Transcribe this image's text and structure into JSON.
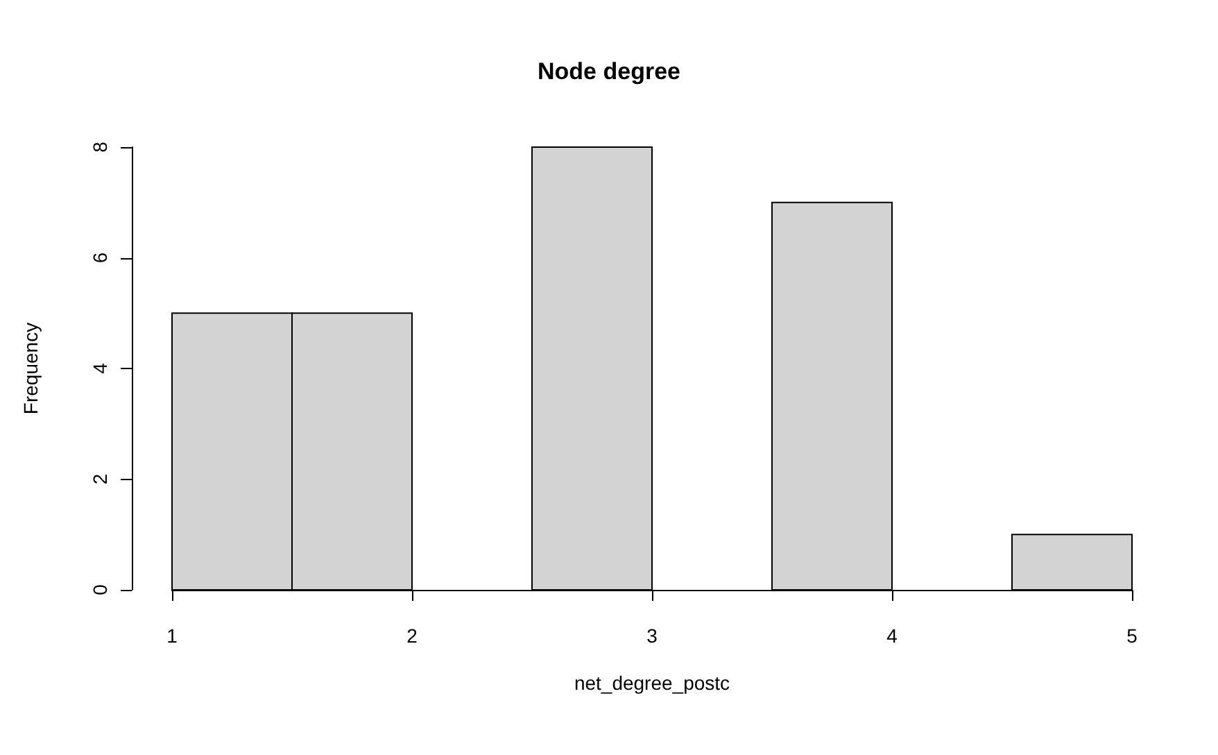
{
  "chart_data": {
    "type": "histogram",
    "title": "Node degree",
    "xlabel": "net_degree_postc",
    "ylabel": "Frequency",
    "bins": [
      1,
      1.5,
      2,
      2.5,
      3,
      3.5,
      4,
      4.5,
      5
    ],
    "values": [
      5,
      5,
      0,
      8,
      0,
      7,
      0,
      1
    ],
    "color": "#d3d3d3",
    "xlim": [
      1,
      5
    ],
    "xticks": [
      1,
      2,
      3,
      4,
      5
    ],
    "ylim": [
      0,
      8
    ],
    "yticks": [
      0,
      2,
      4,
      6,
      8
    ],
    "grid": false
  }
}
